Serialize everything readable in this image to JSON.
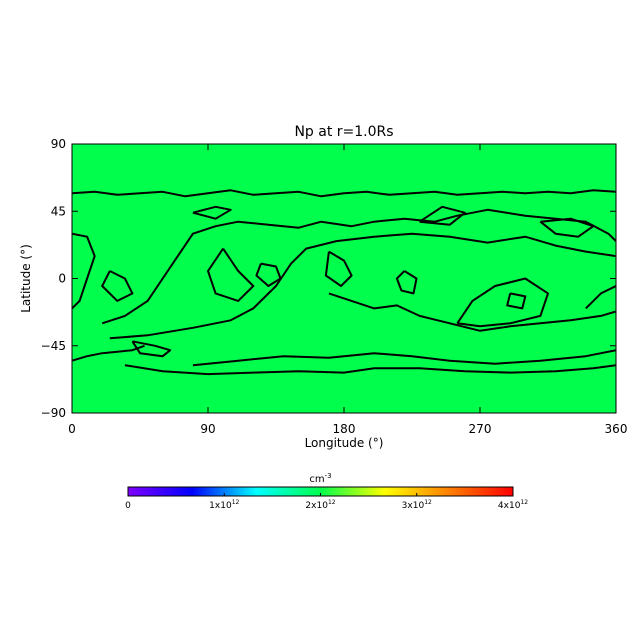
{
  "chart_data": {
    "type": "heatmap",
    "title": "Np at r=1.0Rs",
    "xlabel": "Longitude (°)",
    "ylabel": "Latitude (°)",
    "xlim": [
      0,
      360
    ],
    "ylim": [
      -90,
      90
    ],
    "x_ticks": [
      0,
      90,
      180,
      270,
      360
    ],
    "y_ticks": [
      -90,
      -45,
      0,
      45,
      90
    ],
    "field_value": 2000000000000.0,
    "field_color": "#00ff4c",
    "contour_color": "#000000",
    "contours": [
      {
        "points": [
          [
            0,
            57
          ],
          [
            15,
            58
          ],
          [
            30,
            56
          ],
          [
            45,
            57
          ],
          [
            60,
            58
          ],
          [
            75,
            55
          ],
          [
            90,
            57
          ],
          [
            105,
            59
          ],
          [
            120,
            56
          ],
          [
            135,
            57
          ],
          [
            150,
            58
          ],
          [
            165,
            55
          ],
          [
            180,
            57
          ],
          [
            195,
            58
          ],
          [
            210,
            56
          ],
          [
            225,
            57
          ],
          [
            240,
            58
          ],
          [
            255,
            56
          ],
          [
            270,
            57
          ],
          [
            285,
            58
          ],
          [
            300,
            57
          ],
          [
            315,
            58
          ],
          [
            330,
            57
          ],
          [
            345,
            59
          ],
          [
            360,
            58
          ]
        ]
      },
      {
        "points": [
          [
            0,
            -55
          ],
          [
            10,
            -52
          ],
          [
            20,
            -50
          ],
          [
            30,
            -49
          ],
          [
            40,
            -48
          ],
          [
            48,
            -45
          ]
        ]
      },
      {
        "points": [
          [
            35,
            -58
          ],
          [
            60,
            -62
          ],
          [
            90,
            -64
          ],
          [
            120,
            -63
          ],
          [
            150,
            -62
          ],
          [
            180,
            -63
          ],
          [
            200,
            -60
          ],
          [
            230,
            -60
          ],
          [
            260,
            -62
          ],
          [
            290,
            -63
          ],
          [
            320,
            -62
          ],
          [
            345,
            -60
          ],
          [
            360,
            -58
          ]
        ]
      },
      {
        "points": [
          [
            80,
            -58
          ],
          [
            110,
            -55
          ],
          [
            140,
            -52
          ],
          [
            170,
            -53
          ],
          [
            200,
            -50
          ],
          [
            225,
            -52
          ],
          [
            250,
            -55
          ],
          [
            280,
            -57
          ],
          [
            310,
            -55
          ],
          [
            340,
            -52
          ],
          [
            360,
            -48
          ]
        ]
      },
      {
        "points": [
          [
            25,
            -40
          ],
          [
            50,
            -38
          ],
          [
            80,
            -33
          ],
          [
            105,
            -28
          ],
          [
            120,
            -20
          ],
          [
            135,
            -5
          ],
          [
            145,
            10
          ],
          [
            155,
            20
          ],
          [
            175,
            25
          ],
          [
            200,
            28
          ],
          [
            225,
            30
          ],
          [
            250,
            28
          ],
          [
            275,
            24
          ],
          [
            300,
            28
          ],
          [
            320,
            22
          ],
          [
            340,
            18
          ],
          [
            360,
            15
          ]
        ]
      },
      {
        "points": [
          [
            20,
            -30
          ],
          [
            35,
            -25
          ],
          [
            50,
            -15
          ],
          [
            60,
            0
          ],
          [
            70,
            15
          ],
          [
            80,
            30
          ],
          [
            95,
            35
          ],
          [
            110,
            38
          ],
          [
            130,
            36
          ],
          [
            150,
            34
          ],
          [
            165,
            38
          ],
          [
            185,
            35
          ],
          [
            200,
            38
          ],
          [
            220,
            40
          ],
          [
            240,
            38
          ],
          [
            255,
            42
          ],
          [
            275,
            46
          ],
          [
            300,
            42
          ],
          [
            320,
            40
          ],
          [
            340,
            38
          ],
          [
            355,
            30
          ],
          [
            360,
            25
          ]
        ]
      },
      {
        "points": [
          [
            0,
            30
          ],
          [
            10,
            28
          ],
          [
            15,
            15
          ],
          [
            10,
            0
          ],
          [
            5,
            -15
          ],
          [
            0,
            -20
          ]
        ]
      },
      {
        "points": [
          [
            170,
            -10
          ],
          [
            185,
            -15
          ],
          [
            200,
            -20
          ],
          [
            215,
            -18
          ],
          [
            230,
            -25
          ],
          [
            250,
            -30
          ],
          [
            270,
            -35
          ],
          [
            290,
            -32
          ],
          [
            310,
            -30
          ],
          [
            330,
            -28
          ],
          [
            350,
            -25
          ],
          [
            360,
            -22
          ]
        ]
      },
      {
        "points": [
          [
            255,
            -30
          ],
          [
            265,
            -15
          ],
          [
            280,
            -5
          ],
          [
            300,
            0
          ],
          [
            315,
            -10
          ],
          [
            310,
            -25
          ],
          [
            290,
            -30
          ],
          [
            270,
            -32
          ],
          [
            255,
            -30
          ]
        ]
      },
      {
        "points": [
          [
            100,
            20
          ],
          [
            110,
            5
          ],
          [
            120,
            -5
          ],
          [
            110,
            -15
          ],
          [
            95,
            -10
          ],
          [
            90,
            5
          ],
          [
            100,
            20
          ]
        ]
      },
      {
        "points": [
          [
            125,
            10
          ],
          [
            135,
            8
          ],
          [
            138,
            0
          ],
          [
            130,
            -5
          ],
          [
            122,
            2
          ],
          [
            125,
            10
          ]
        ]
      },
      {
        "points": [
          [
            170,
            18
          ],
          [
            180,
            12
          ],
          [
            185,
            2
          ],
          [
            178,
            -5
          ],
          [
            168,
            2
          ],
          [
            170,
            18
          ]
        ]
      },
      {
        "points": [
          [
            220,
            5
          ],
          [
            228,
            0
          ],
          [
            226,
            -10
          ],
          [
            218,
            -8
          ],
          [
            215,
            0
          ],
          [
            220,
            5
          ]
        ]
      },
      {
        "points": [
          [
            290,
            -10
          ],
          [
            300,
            -12
          ],
          [
            298,
            -20
          ],
          [
            288,
            -18
          ],
          [
            290,
            -10
          ]
        ]
      },
      {
        "points": [
          [
            230,
            38
          ],
          [
            245,
            48
          ],
          [
            260,
            44
          ],
          [
            250,
            36
          ],
          [
            230,
            38
          ]
        ]
      },
      {
        "points": [
          [
            80,
            44
          ],
          [
            95,
            48
          ],
          [
            105,
            46
          ],
          [
            95,
            40
          ],
          [
            80,
            44
          ]
        ]
      },
      {
        "points": [
          [
            310,
            38
          ],
          [
            320,
            30
          ],
          [
            335,
            28
          ],
          [
            345,
            35
          ],
          [
            330,
            40
          ],
          [
            310,
            38
          ]
        ]
      },
      {
        "points": [
          [
            340,
            -20
          ],
          [
            350,
            -10
          ],
          [
            360,
            -5
          ]
        ]
      },
      {
        "points": [
          [
            40,
            -42
          ],
          [
            55,
            -45
          ],
          [
            65,
            -48
          ],
          [
            60,
            -52
          ],
          [
            45,
            -50
          ],
          [
            40,
            -42
          ]
        ]
      },
      {
        "points": [
          [
            25,
            5
          ],
          [
            35,
            0
          ],
          [
            40,
            -10
          ],
          [
            30,
            -15
          ],
          [
            20,
            -5
          ],
          [
            25,
            5
          ]
        ]
      }
    ],
    "colorbar": {
      "unit": "cm",
      "unit_exponent": "-3",
      "min": 0,
      "max": 4000000000000.0,
      "tick_values": [
        0,
        1000000000000.0,
        2000000000000.0,
        3000000000000.0,
        4000000000000.0
      ],
      "tick_labels": [
        {
          "base": "0",
          "exp": ""
        },
        {
          "base": "1x10",
          "exp": "12"
        },
        {
          "base": "2x10",
          "exp": "12"
        },
        {
          "base": "3x10",
          "exp": "12"
        },
        {
          "base": "4x10",
          "exp": "12"
        }
      ],
      "colors": [
        "#7f00ff",
        "#0000ff",
        "#00ffff",
        "#00ff4c",
        "#ffff00",
        "#ff8000",
        "#ff0000"
      ]
    }
  }
}
